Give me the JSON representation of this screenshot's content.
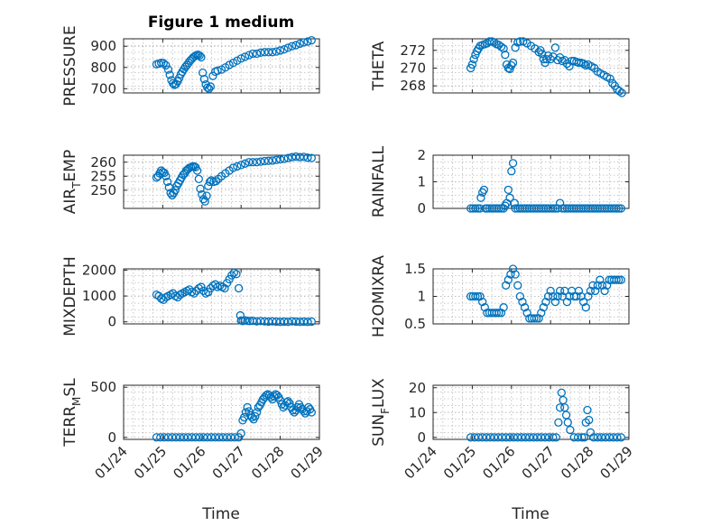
{
  "figure": {
    "title": "Figure 1 medium",
    "xlabel": "Time",
    "colors": {
      "marker": "#0072BD",
      "axis": "#262626",
      "grid": "#b9b9b9"
    }
  },
  "chart_data": [
    {
      "type": "scatter",
      "name": "pressure",
      "ylabel": "PRESSURE",
      "ylabel_sub": "",
      "ylim": [
        680,
        935
      ],
      "yticks": [
        700,
        800,
        900
      ],
      "ytick_labels": [
        "700",
        "800",
        "900"
      ],
      "xlim": [
        24,
        29
      ],
      "xticks": [
        24,
        25,
        26,
        27,
        28,
        29
      ],
      "xtick_labels": [
        "01/24",
        "01/25",
        "01/26",
        "01/27",
        "01/28",
        "01/29"
      ],
      "show_xticklabels": false,
      "x": [
        24.84,
        24.9,
        24.96,
        25.02,
        25.08,
        25.14,
        25.18,
        25.22,
        25.26,
        25.3,
        25.34,
        25.38,
        25.42,
        25.46,
        25.5,
        25.54,
        25.58,
        25.62,
        25.66,
        25.7,
        25.74,
        25.78,
        25.82,
        25.86,
        25.9,
        25.94,
        25.98,
        26.02,
        26.06,
        26.1,
        26.14,
        26.18,
        26.22,
        26.28,
        26.34,
        26.4,
        26.5,
        26.6,
        26.7,
        26.8,
        26.9,
        27.0,
        27.1,
        27.2,
        27.3,
        27.4,
        27.5,
        27.6,
        27.7,
        27.8,
        27.9,
        28.0,
        28.1,
        28.2,
        28.3,
        28.4,
        28.5,
        28.6,
        28.7,
        28.8
      ],
      "y": [
        815,
        818,
        822,
        820,
        810,
        790,
        765,
        740,
        725,
        718,
        722,
        735,
        750,
        768,
        780,
        792,
        803,
        812,
        822,
        832,
        840,
        848,
        853,
        858,
        860,
        856,
        848,
        775,
        745,
        720,
        705,
        700,
        710,
        760,
        780,
        785,
        790,
        800,
        812,
        822,
        832,
        842,
        850,
        858,
        865,
        865,
        870,
        872,
        872,
        872,
        875,
        880,
        885,
        893,
        900,
        905,
        912,
        918,
        922,
        928
      ]
    },
    {
      "type": "scatter",
      "name": "theta",
      "ylabel": "THETA",
      "ylabel_sub": "",
      "ylim": [
        267.2,
        273.3
      ],
      "yticks": [
        268,
        270,
        272
      ],
      "ytick_labels": [
        "268",
        "270",
        "272"
      ],
      "xlim": [
        24,
        29
      ],
      "xticks": [
        24,
        25,
        26,
        27,
        28,
        29
      ],
      "xtick_labels": [
        "01/24",
        "01/25",
        "01/26",
        "01/27",
        "01/28",
        "01/29"
      ],
      "show_xticklabels": false,
      "x": [
        24.96,
        25.0,
        25.04,
        25.08,
        25.12,
        25.16,
        25.2,
        25.26,
        25.32,
        25.38,
        25.44,
        25.5,
        25.56,
        25.62,
        25.68,
        25.74,
        25.8,
        25.84,
        25.88,
        25.92,
        25.96,
        26.0,
        26.04,
        26.1,
        26.16,
        26.22,
        26.3,
        26.4,
        26.5,
        26.6,
        26.7,
        26.74,
        26.78,
        26.82,
        26.86,
        26.9,
        26.94,
        27.0,
        27.06,
        27.12,
        27.18,
        27.24,
        27.3,
        27.36,
        27.42,
        27.48,
        27.54,
        27.6,
        27.66,
        27.72,
        27.78,
        27.84,
        27.9,
        27.96,
        28.04,
        28.12,
        28.2,
        28.28,
        28.36,
        28.44,
        28.52,
        28.58,
        28.64,
        28.7,
        28.76,
        28.82
      ],
      "y": [
        270.0,
        270.4,
        271.0,
        271.5,
        271.9,
        272.2,
        272.5,
        272.6,
        272.7,
        272.8,
        273.0,
        273.0,
        272.9,
        272.7,
        272.6,
        272.4,
        272.2,
        271.5,
        270.4,
        270.0,
        269.9,
        270.3,
        270.6,
        272.3,
        272.9,
        273.0,
        273.0,
        272.8,
        272.5,
        272.2,
        271.8,
        272.0,
        271.6,
        271.0,
        270.6,
        271.0,
        271.4,
        271.0,
        271.3,
        272.3,
        270.9,
        271.2,
        270.8,
        270.9,
        270.5,
        270.2,
        270.8,
        270.8,
        270.7,
        270.6,
        270.6,
        270.5,
        270.3,
        270.4,
        270.2,
        270.0,
        269.6,
        269.4,
        269.2,
        269.0,
        268.8,
        268.3,
        268.0,
        267.6,
        267.4,
        267.2
      ]
    },
    {
      "type": "scatter",
      "name": "air-temp",
      "ylabel": "AIR",
      "ylabel_sub": "T",
      "ylabel_tail": "EMP",
      "ylabel_full": "AIR_TEMP",
      "ylim": [
        243.5,
        262.5
      ],
      "yticks": [
        250,
        255,
        260
      ],
      "ytick_labels": [
        "250",
        "255",
        "260"
      ],
      "xlim": [
        24,
        29
      ],
      "xticks": [
        24,
        25,
        26,
        27,
        28,
        29
      ],
      "xtick_labels": [
        "01/24",
        "01/25",
        "01/26",
        "01/27",
        "01/28",
        "01/29"
      ],
      "show_xticklabels": false,
      "x": [
        24.84,
        24.88,
        24.92,
        24.96,
        25.0,
        25.04,
        25.08,
        25.12,
        25.16,
        25.2,
        25.24,
        25.28,
        25.32,
        25.36,
        25.4,
        25.44,
        25.48,
        25.52,
        25.56,
        25.6,
        25.64,
        25.68,
        25.72,
        25.76,
        25.8,
        25.84,
        25.88,
        25.92,
        25.96,
        26.0,
        26.04,
        26.08,
        26.12,
        26.16,
        26.2,
        26.24,
        26.3,
        26.36,
        26.42,
        26.5,
        26.6,
        26.7,
        26.8,
        26.9,
        27.0,
        27.1,
        27.2,
        27.3,
        27.4,
        27.5,
        27.6,
        27.7,
        27.8,
        27.9,
        28.0,
        28.1,
        28.2,
        28.3,
        28.4,
        28.5,
        28.6,
        28.7,
        28.8
      ],
      "y": [
        254.5,
        255.0,
        256.0,
        257.0,
        256.5,
        256.2,
        255.0,
        253.0,
        251.0,
        249.0,
        248.2,
        249.0,
        250.0,
        251.5,
        252.5,
        253.5,
        254.5,
        255.5,
        256.0,
        257.0,
        257.5,
        258.0,
        258.2,
        258.5,
        258.5,
        258.2,
        257.0,
        254.0,
        250.5,
        248.5,
        246.8,
        246.0,
        248.0,
        251.5,
        253.0,
        253.5,
        253.0,
        253.2,
        254.0,
        255.0,
        256.0,
        257.0,
        258.0,
        258.5,
        259.0,
        259.5,
        260.0,
        260.0,
        260.0,
        260.2,
        260.4,
        260.5,
        260.6,
        260.8,
        261.0,
        261.2,
        261.5,
        261.8,
        262.0,
        261.8,
        261.9,
        261.6,
        261.5
      ]
    },
    {
      "type": "scatter",
      "name": "rainfall",
      "ylabel": "RAINFALL",
      "ylabel_sub": "",
      "ylim": [
        0,
        2
      ],
      "yticks": [
        0,
        1,
        2
      ],
      "ytick_labels": [
        "0",
        "1",
        "2"
      ],
      "xlim": [
        24,
        29
      ],
      "xticks": [
        24,
        25,
        26,
        27,
        28,
        29
      ],
      "xtick_labels": [
        "01/24",
        "01/25",
        "01/26",
        "01/27",
        "01/28",
        "01/29"
      ],
      "show_xticklabels": false,
      "x": [
        24.96,
        25.02,
        25.08,
        25.14,
        25.2,
        25.22,
        25.26,
        25.3,
        25.34,
        25.38,
        25.44,
        25.5,
        25.56,
        25.62,
        25.68,
        25.74,
        25.8,
        25.84,
        25.88,
        25.92,
        25.96,
        26.0,
        26.04,
        26.08,
        26.1,
        26.16,
        26.22,
        26.28,
        26.34,
        26.4,
        26.46,
        26.52,
        26.58,
        26.64,
        26.7,
        26.76,
        26.82,
        26.88,
        26.94,
        27.0,
        27.06,
        27.12,
        27.18,
        27.24,
        27.3,
        27.36,
        27.42,
        27.48,
        27.54,
        27.6,
        27.66,
        27.72,
        27.78,
        27.84,
        27.9,
        27.96,
        28.02,
        28.08,
        28.14,
        28.2,
        28.26,
        28.32,
        28.38,
        28.44,
        28.5,
        28.56,
        28.62,
        28.68,
        28.74,
        28.8
      ],
      "y": [
        0,
        0,
        0,
        0,
        0,
        0.4,
        0.6,
        0.7,
        0,
        0,
        0,
        0,
        0,
        0,
        0,
        0,
        0,
        0.1,
        0.2,
        0.7,
        0.4,
        1.4,
        1.7,
        0.2,
        0,
        0,
        0,
        0,
        0,
        0,
        0,
        0,
        0,
        0,
        0,
        0,
        0,
        0,
        0,
        0,
        0,
        0,
        0,
        0.2,
        0,
        0,
        0,
        0,
        0,
        0,
        0,
        0,
        0,
        0,
        0,
        0,
        0,
        0,
        0,
        0,
        0,
        0,
        0,
        0,
        0,
        0,
        0,
        0,
        0,
        0
      ]
    },
    {
      "type": "scatter",
      "name": "mixdepth",
      "ylabel": "MIXDEPTH",
      "ylabel_sub": "",
      "ylim": [
        -80,
        2050
      ],
      "yticks": [
        0,
        1000,
        2000
      ],
      "ytick_labels": [
        "0",
        "1000",
        "2000"
      ],
      "xlim": [
        24,
        29
      ],
      "xticks": [
        24,
        25,
        26,
        27,
        28,
        29
      ],
      "xtick_labels": [
        "01/24",
        "01/25",
        "01/26",
        "01/27",
        "01/28",
        "01/29"
      ],
      "show_xticklabels": false,
      "x": [
        24.84,
        24.9,
        24.96,
        25.02,
        25.08,
        25.14,
        25.2,
        25.26,
        25.32,
        25.38,
        25.44,
        25.5,
        25.56,
        25.62,
        25.68,
        25.74,
        25.8,
        25.86,
        25.92,
        25.98,
        26.04,
        26.1,
        26.16,
        26.22,
        26.28,
        26.34,
        26.4,
        26.46,
        26.52,
        26.58,
        26.64,
        26.7,
        26.76,
        26.82,
        26.88,
        26.94,
        26.98,
        27.0,
        27.04,
        27.1,
        27.16,
        27.22,
        27.3,
        27.4,
        27.5,
        27.6,
        27.7,
        27.8,
        27.9,
        28.0,
        28.1,
        28.2,
        28.3,
        28.4,
        28.5,
        28.6,
        28.7,
        28.8
      ],
      "y": [
        1050,
        1000,
        900,
        850,
        950,
        1000,
        1050,
        1100,
        1000,
        950,
        1050,
        1100,
        1150,
        1200,
        1250,
        1150,
        1100,
        1200,
        1300,
        1350,
        1200,
        1100,
        1150,
        1300,
        1400,
        1450,
        1350,
        1400,
        1350,
        1300,
        1500,
        1650,
        1800,
        1900,
        1850,
        1300,
        250,
        50,
        30,
        60,
        40,
        30,
        40,
        20,
        30,
        20,
        10,
        20,
        10,
        0,
        10,
        0,
        20,
        10,
        0,
        10,
        0,
        10
      ]
    },
    {
      "type": "scatter",
      "name": "h2omixra",
      "ylabel": "H2OMIXRA",
      "ylabel_sub": "",
      "ylim": [
        0.5,
        1.5
      ],
      "yticks": [
        0.5,
        1,
        1.5
      ],
      "ytick_labels": [
        "0.5",
        "1",
        "1.5"
      ],
      "xlim": [
        24,
        29
      ],
      "xticks": [
        24,
        25,
        26,
        27,
        28,
        29
      ],
      "xtick_labels": [
        "01/24",
        "01/25",
        "01/26",
        "01/27",
        "01/28",
        "01/29"
      ],
      "show_xticklabels": false,
      "x": [
        24.96,
        25.02,
        25.08,
        25.14,
        25.2,
        25.26,
        25.32,
        25.38,
        25.44,
        25.5,
        25.56,
        25.62,
        25.68,
        25.74,
        25.8,
        25.86,
        25.92,
        25.98,
        26.04,
        26.1,
        26.16,
        26.22,
        26.28,
        26.34,
        26.4,
        26.46,
        26.52,
        26.58,
        26.64,
        26.7,
        26.76,
        26.82,
        26.88,
        26.94,
        27.0,
        27.06,
        27.12,
        27.18,
        27.24,
        27.3,
        27.36,
        27.42,
        27.48,
        27.54,
        27.6,
        27.66,
        27.72,
        27.78,
        27.84,
        27.9,
        27.96,
        28.02,
        28.08,
        28.14,
        28.2,
        28.26,
        28.32,
        28.38,
        28.44,
        28.5,
        28.56,
        28.62,
        28.68,
        28.74,
        28.8
      ],
      "y": [
        1.0,
        1.0,
        1.0,
        1.0,
        1.0,
        0.9,
        0.8,
        0.7,
        0.7,
        0.7,
        0.7,
        0.7,
        0.7,
        0.7,
        0.8,
        1.2,
        1.3,
        1.4,
        1.5,
        1.4,
        1.2,
        1.0,
        0.9,
        0.8,
        0.7,
        0.6,
        0.6,
        0.6,
        0.6,
        0.6,
        0.7,
        0.8,
        0.9,
        1.0,
        1.1,
        1.0,
        0.9,
        1.0,
        1.1,
        1.0,
        1.1,
        0.9,
        1.0,
        1.1,
        1.0,
        1.0,
        1.1,
        1.0,
        0.9,
        0.8,
        1.0,
        1.1,
        1.2,
        1.1,
        1.2,
        1.3,
        1.2,
        1.1,
        1.2,
        1.3,
        1.3,
        1.3,
        1.3,
        1.3,
        1.3
      ]
    },
    {
      "type": "scatter",
      "name": "terr-msl",
      "ylabel": "TERR",
      "ylabel_sub": "M",
      "ylabel_tail": "SL",
      "ylabel_full": "TERR_MSL",
      "ylim": [
        -20,
        520
      ],
      "yticks": [
        0,
        500
      ],
      "ytick_labels": [
        "0",
        "500"
      ],
      "xlim": [
        24,
        29
      ],
      "xticks": [
        24,
        25,
        26,
        27,
        28,
        29
      ],
      "xtick_labels": [
        "01/24",
        "01/25",
        "01/26",
        "01/27",
        "01/28",
        "01/29"
      ],
      "show_xticklabels": true,
      "x": [
        24.84,
        24.94,
        25.04,
        25.14,
        25.24,
        25.34,
        25.44,
        25.54,
        25.64,
        25.74,
        25.84,
        25.94,
        26.04,
        26.14,
        26.24,
        26.34,
        26.44,
        26.54,
        26.64,
        26.74,
        26.84,
        26.94,
        27.0,
        27.04,
        27.08,
        27.12,
        27.16,
        27.2,
        27.24,
        27.28,
        27.32,
        27.36,
        27.4,
        27.44,
        27.48,
        27.52,
        27.56,
        27.6,
        27.64,
        27.68,
        27.72,
        27.76,
        27.8,
        27.84,
        27.88,
        27.92,
        27.96,
        28.0,
        28.04,
        28.08,
        28.12,
        28.16,
        28.2,
        28.24,
        28.28,
        28.32,
        28.36,
        28.4,
        28.44,
        28.48,
        28.52,
        28.56,
        28.6,
        28.64,
        28.68,
        28.72,
        28.76,
        28.8
      ],
      "y": [
        0,
        0,
        0,
        0,
        0,
        0,
        0,
        0,
        0,
        0,
        0,
        0,
        0,
        0,
        0,
        0,
        0,
        0,
        0,
        0,
        0,
        0,
        40,
        170,
        200,
        250,
        300,
        260,
        220,
        200,
        180,
        210,
        250,
        300,
        320,
        350,
        380,
        400,
        420,
        430,
        420,
        400,
        380,
        410,
        430,
        420,
        400,
        370,
        330,
        300,
        320,
        350,
        360,
        340,
        300,
        270,
        250,
        270,
        300,
        330,
        300,
        280,
        260,
        240,
        260,
        300,
        280,
        250
      ]
    },
    {
      "type": "scatter",
      "name": "sun-flux",
      "ylabel": "SUN",
      "ylabel_sub": "F",
      "ylabel_tail": "LUX",
      "ylabel_full": "SUN_FLUX",
      "ylim": [
        -0.8,
        21
      ],
      "yticks": [
        0,
        10,
        20
      ],
      "ytick_labels": [
        "0",
        "10",
        "20"
      ],
      "xlim": [
        24,
        29
      ],
      "xticks": [
        24,
        25,
        26,
        27,
        28,
        29
      ],
      "xtick_labels": [
        "01/24",
        "01/25",
        "01/26",
        "01/27",
        "01/28",
        "01/29"
      ],
      "show_xticklabels": true,
      "x": [
        24.96,
        25.06,
        25.16,
        25.26,
        25.36,
        25.46,
        25.56,
        25.66,
        25.76,
        25.86,
        25.96,
        26.06,
        26.16,
        26.26,
        26.36,
        26.46,
        26.56,
        26.66,
        26.76,
        26.86,
        26.96,
        27.06,
        27.14,
        27.2,
        27.24,
        27.28,
        27.32,
        27.36,
        27.4,
        27.44,
        27.5,
        27.6,
        27.7,
        27.8,
        27.86,
        27.9,
        27.94,
        27.98,
        28.02,
        28.1,
        28.2,
        28.3,
        28.4,
        28.5,
        28.6,
        28.7,
        28.8
      ],
      "y": [
        0,
        0,
        0,
        0,
        0,
        0,
        0,
        0,
        0,
        0,
        0,
        0,
        0,
        0,
        0,
        0,
        0,
        0,
        0,
        0,
        0,
        0,
        0,
        6,
        12,
        18,
        15,
        12,
        9,
        6,
        3,
        0,
        0,
        0,
        0,
        6,
        11,
        7,
        2,
        0,
        0,
        0,
        0,
        0,
        0,
        0,
        0
      ]
    }
  ]
}
